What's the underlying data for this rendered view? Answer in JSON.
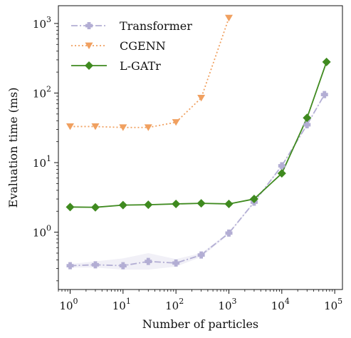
{
  "chart_data": {
    "type": "line",
    "title": "",
    "xlabel": "Number of particles",
    "ylabel": "Evaluation time (ms)",
    "xscale": "log",
    "yscale": "log",
    "xlim": [
      0.6,
      140000
    ],
    "ylim": [
      0.15,
      1800
    ],
    "xticks": [
      {
        "value": 1,
        "base": "10",
        "exp": "0"
      },
      {
        "value": 10,
        "base": "10",
        "exp": "1"
      },
      {
        "value": 100,
        "base": "10",
        "exp": "2"
      },
      {
        "value": 1000,
        "base": "10",
        "exp": "3"
      },
      {
        "value": 10000,
        "base": "10",
        "exp": "4"
      },
      {
        "value": 100000,
        "base": "10",
        "exp": "5"
      }
    ],
    "yticks": [
      {
        "value": 1,
        "base": "10",
        "exp": "0"
      },
      {
        "value": 10,
        "base": "10",
        "exp": "1"
      },
      {
        "value": 100,
        "base": "10",
        "exp": "2"
      },
      {
        "value": 1000,
        "base": "10",
        "exp": "3"
      }
    ],
    "grid": false,
    "legend_position": "top-left",
    "series": [
      {
        "name": "Transformer",
        "color": "#b3aed4",
        "marker": "plus",
        "linestyle": "dashdot",
        "x": [
          1,
          3,
          10,
          30,
          100,
          300,
          1000,
          3000,
          10000,
          30000,
          64000
        ],
        "y": [
          0.33,
          0.34,
          0.33,
          0.38,
          0.36,
          0.47,
          0.97,
          2.7,
          9.0,
          35,
          95
        ],
        "band_low": [
          0.31,
          0.31,
          0.29,
          0.29,
          0.32,
          0.44,
          0.93,
          2.6,
          8.6,
          34,
          92
        ],
        "band_high": [
          0.35,
          0.38,
          0.42,
          0.5,
          0.41,
          0.5,
          1.0,
          2.8,
          9.4,
          36,
          98
        ]
      },
      {
        "name": "CGENN",
        "color": "#f0a060",
        "marker": "triangle-down",
        "linestyle": "dotted",
        "x": [
          1,
          3,
          10,
          30,
          100,
          300,
          1000
        ],
        "y": [
          33,
          33,
          32,
          32,
          38,
          85,
          1200
        ]
      },
      {
        "name": "L-GATr",
        "color": "#3f8a1f",
        "marker": "diamond",
        "linestyle": "solid",
        "x": [
          1,
          3,
          10,
          30,
          100,
          300,
          1000,
          3000,
          10000,
          30000,
          70000
        ],
        "y": [
          2.3,
          2.28,
          2.45,
          2.48,
          2.55,
          2.6,
          2.55,
          3.0,
          7.0,
          44,
          280
        ]
      }
    ]
  }
}
